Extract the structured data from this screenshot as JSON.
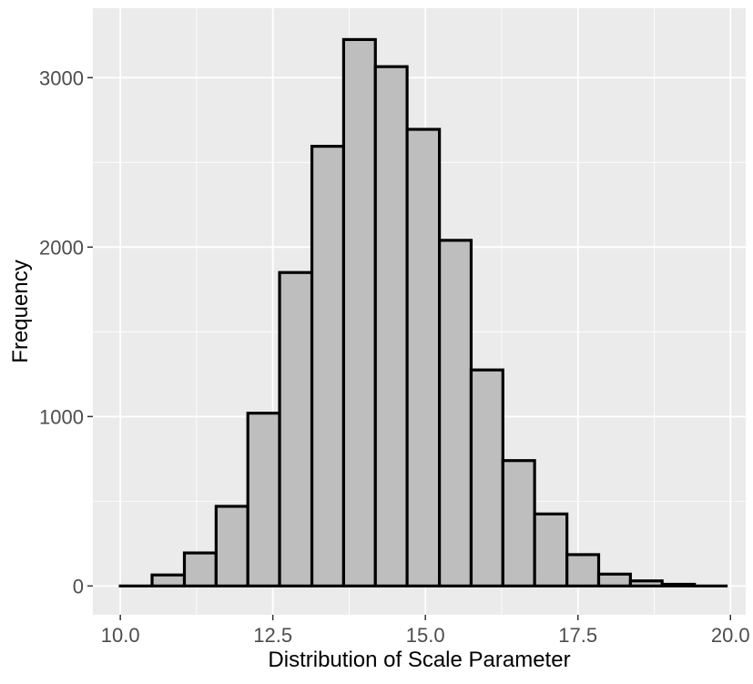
{
  "chart_data": {
    "type": "bar",
    "subtype": "histogram",
    "title": "",
    "xlabel": "Distribution of Scale Parameter",
    "ylabel": "Frequency",
    "xlim": [
      9.55,
      20.25
    ],
    "ylim": [
      -170,
      3410
    ],
    "x_ticks": [
      10.0,
      12.5,
      15.0,
      17.5,
      20.0
    ],
    "x_tick_labels": [
      "10.0",
      "12.5",
      "15.0",
      "17.5",
      "20.0"
    ],
    "y_ticks": [
      0,
      1000,
      2000,
      3000
    ],
    "y_tick_labels": [
      "0",
      "1000",
      "2000",
      "3000"
    ],
    "grid": true,
    "bin_edges": [
      10.0,
      10.52,
      11.05,
      11.57,
      12.09,
      12.61,
      13.14,
      13.66,
      14.18,
      14.7,
      15.23,
      15.75,
      16.27,
      16.79,
      17.32,
      17.84,
      18.36,
      18.88,
      19.41,
      19.93
    ],
    "values": [
      0,
      65,
      195,
      470,
      1020,
      1850,
      2595,
      3225,
      3065,
      2695,
      2040,
      1275,
      740,
      425,
      185,
      70,
      30,
      10,
      0
    ],
    "style": {
      "bar_fill": "#bebebe",
      "bar_stroke": "#000000",
      "panel_background": "#ebebeb",
      "grid_color": "#ffffff",
      "tick_label_color": "#4d4d4d"
    }
  }
}
